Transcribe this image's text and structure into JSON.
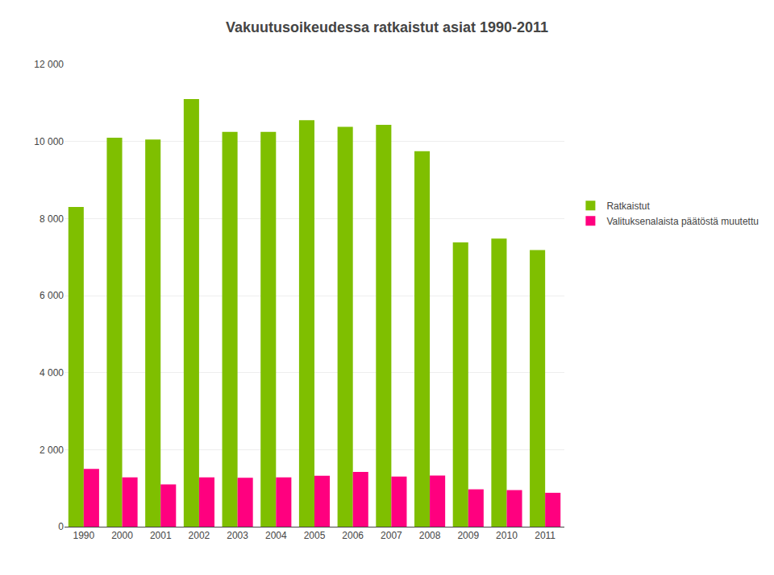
{
  "chart_data": {
    "type": "bar",
    "title": "Vakuutusoikeudessa ratkaistut asiat 1990-2011",
    "categories": [
      "1990",
      "2000",
      "2001",
      "2002",
      "2003",
      "2004",
      "2005",
      "2006",
      "2007",
      "2008",
      "2009",
      "2010",
      "2011"
    ],
    "series": [
      {
        "name": "Ratkaistut",
        "color": "#7FBF00",
        "values": [
          8300,
          10100,
          10050,
          11100,
          10250,
          10250,
          10550,
          10380,
          10430,
          9750,
          7380,
          7480,
          7180
        ]
      },
      {
        "name": "Valituksenalaista päätöstä muutettu",
        "color": "#FF007F",
        "values": [
          1500,
          1280,
          1100,
          1280,
          1270,
          1280,
          1320,
          1420,
          1300,
          1330,
          970,
          950,
          880
        ]
      }
    ],
    "ylim": [
      0,
      12000
    ],
    "yticks": [
      0,
      {
        "value": 2000,
        "label": "2 000"
      },
      {
        "value": 4000,
        "label": "4 000"
      },
      {
        "value": 6000,
        "label": "6 000"
      },
      {
        "value": 8000,
        "label": "8 000"
      },
      {
        "value": 10000,
        "label": "10 000"
      },
      {
        "value": 12000,
        "label": "12 000"
      }
    ],
    "grid": true,
    "legend": "right"
  }
}
